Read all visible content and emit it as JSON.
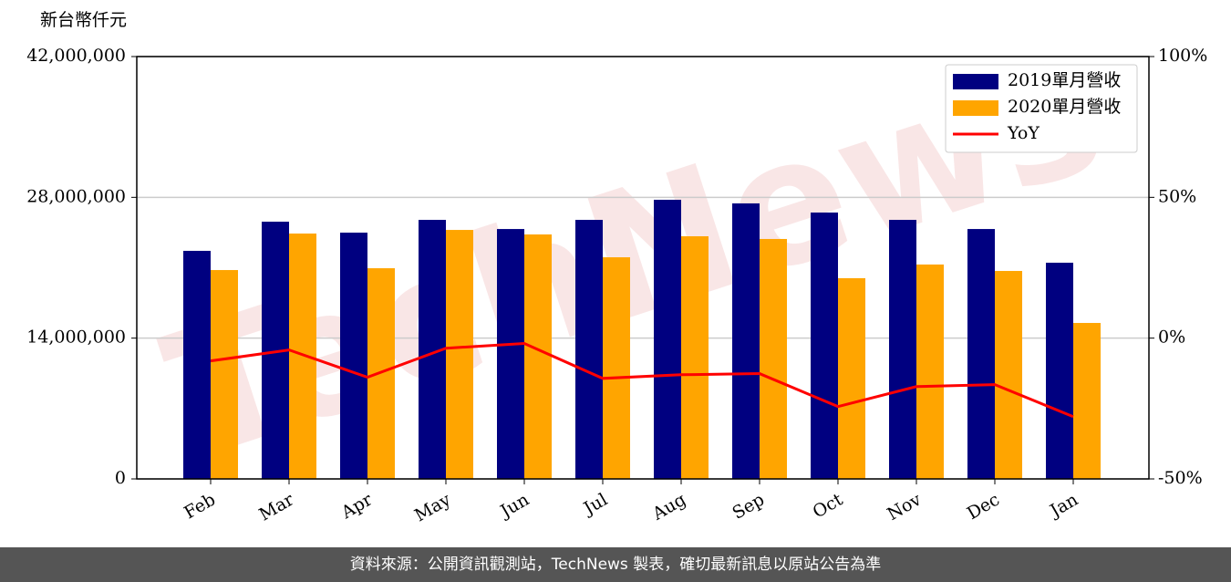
{
  "chart_data": {
    "type": "bar_line",
    "y_label": "新台幣仟元",
    "watermark": "TechNews",
    "categories": [
      "Feb",
      "Mar",
      "Apr",
      "May",
      "Jun",
      "Jul",
      "Aug",
      "Sep",
      "Oct",
      "Nov",
      "Dec",
      "Jan"
    ],
    "series": [
      {
        "name": "2019單月營收",
        "color": "#000080",
        "type": "bar",
        "values": [
          22680000,
          25580000,
          24490000,
          25760000,
          24850000,
          25760000,
          27760000,
          27400000,
          26490000,
          25760000,
          24850000,
          21500000
        ]
      },
      {
        "name": "2020單月營收",
        "color": "#ffa500",
        "type": "bar",
        "values": [
          20770000,
          24400000,
          20950000,
          24760000,
          24310000,
          22040000,
          24130000,
          23860000,
          19960000,
          21320000,
          20680000,
          15510000
        ]
      },
      {
        "name": "YoY",
        "color": "#ff0000",
        "type": "line",
        "axis": "y2",
        "values": [
          -8.1,
          -4.2,
          -13.9,
          -3.6,
          -1.9,
          -14.3,
          -13.0,
          -12.6,
          -24.3,
          -17.2,
          -16.5,
          -27.9
        ]
      }
    ],
    "ylim": [
      0,
      42000000
    ],
    "yticks": [
      0,
      {
        "value": 14000000,
        "label": "14,000,000"
      },
      {
        "value": 28000000,
        "label": "28,000,000"
      },
      {
        "value": 42000000,
        "label": "42,000,000"
      }
    ],
    "y2lim": [
      -50,
      100
    ],
    "y2ticks": [
      {
        "value": -50,
        "label": "-50%"
      },
      {
        "value": 0,
        "label": "0%"
      },
      {
        "value": 50,
        "label": "50%"
      },
      {
        "value": 100,
        "label": "100%"
      }
    ],
    "grid": true,
    "legend": "upper right",
    "footer": "資料來源：公開資訊觀測站，TechNews 製表，確切最新訊息以原站公告為準"
  }
}
